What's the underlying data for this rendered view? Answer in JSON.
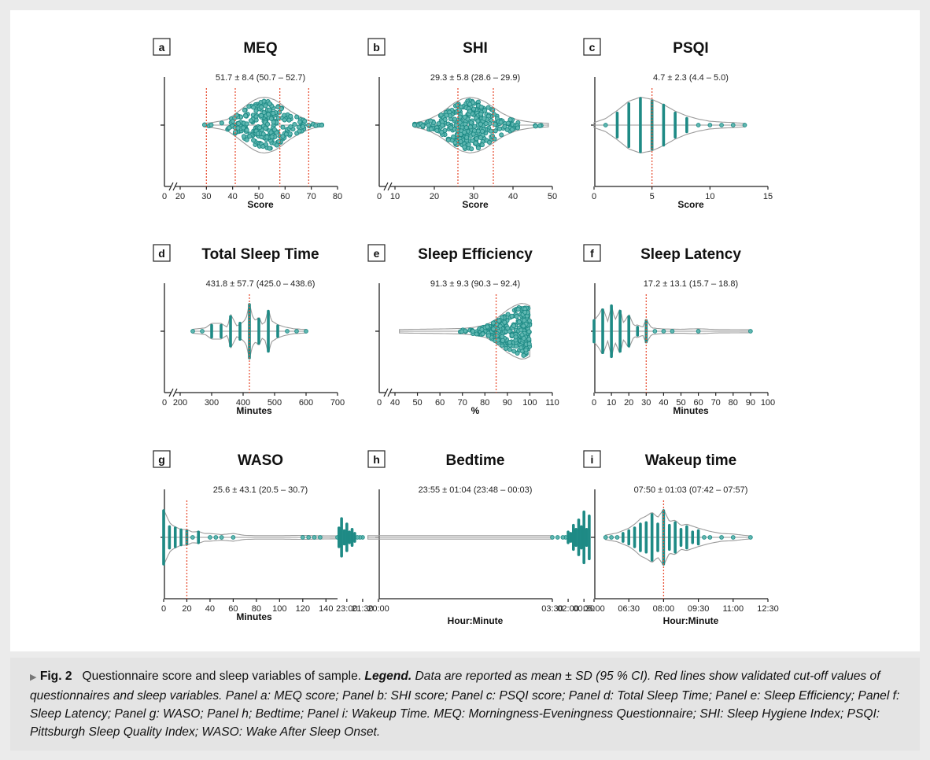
{
  "colors": {
    "teal": "#1e8a85",
    "dot_fill": "#5fb7b1",
    "red": "#e8553a",
    "outline": "#9a9a9a"
  },
  "caption": {
    "marker": "▶",
    "label": "Fig. 2",
    "text": "Questionnaire score and sleep variables of sample.",
    "legend_label": "Legend.",
    "legend_text": "Data are reported as mean ± SD (95 % CI). Red lines show validated cut-off values of questionnaires and sleep variables. Panel a: MEQ score; Panel b: SHI score; Panel c: PSQI score; Panel d: Total Sleep Time; Panel e: Sleep Efficiency; Panel f: Sleep Latency; Panel g: WASO; Panel h; Bedtime; Panel i: Wakeup Time. MEQ: Morningness-Eveningness Questionnaire; SHI: Sleep Hygiene Index; PSQI: Pittsburgh Sleep Quality Index; WASO: Wake After Sleep Onset."
  },
  "chart_data": [
    {
      "type": "violin",
      "panel": "a",
      "title": "MEQ",
      "stats": "51.7 ± 8.4 (50.7 – 52.7)",
      "xlabel": "Score",
      "xlim": [
        20,
        80
      ],
      "axis_break": true,
      "origin_label": "0",
      "ticks": [
        20,
        30,
        40,
        50,
        60,
        70,
        80
      ],
      "tick_labels": [
        "20",
        "30",
        "40",
        "50",
        "60",
        "70",
        "80"
      ],
      "cutoffs": [
        30,
        41,
        58,
        69
      ],
      "density_x": [
        29,
        32,
        35,
        38,
        40,
        42,
        44,
        46,
        48,
        50,
        52,
        54,
        56,
        58,
        60,
        62,
        64,
        66,
        68,
        71,
        74
      ],
      "density_w": [
        0.02,
        0.05,
        0.1,
        0.17,
        0.3,
        0.45,
        0.6,
        0.75,
        0.88,
        0.97,
        1.0,
        0.97,
        0.9,
        0.78,
        0.62,
        0.48,
        0.36,
        0.26,
        0.16,
        0.06,
        0.01
      ],
      "dots": "beeswarm",
      "n": 260,
      "mean": 51.7,
      "sd": 8.4
    },
    {
      "type": "violin",
      "panel": "b",
      "title": "SHI",
      "stats": "29.3 ± 5.8 (28.6 – 29.9)",
      "xlabel": "Score",
      "xlim": [
        10,
        50
      ],
      "axis_break": true,
      "origin_label": "0",
      "ticks": [
        10,
        20,
        30,
        40,
        50
      ],
      "tick_labels": [
        "10",
        "20",
        "30",
        "40",
        "50"
      ],
      "cutoffs": [
        26,
        35
      ],
      "density_x": [
        15,
        17,
        19,
        21,
        23,
        25,
        27,
        29,
        31,
        33,
        35,
        37,
        39,
        41,
        43,
        45,
        47,
        49
      ],
      "density_w": [
        0.04,
        0.1,
        0.2,
        0.35,
        0.55,
        0.78,
        0.93,
        1.0,
        0.95,
        0.82,
        0.62,
        0.42,
        0.27,
        0.16,
        0.1,
        0.06,
        0.04,
        0.02
      ],
      "dots": "beeswarm",
      "n": 330,
      "mean": 29.3,
      "sd": 5.8
    },
    {
      "type": "violin",
      "panel": "c",
      "title": "PSQI",
      "stats": "4.7 ± 2.3 (4.4 – 5.0)",
      "xlabel": "Score",
      "xlim": [
        0,
        15
      ],
      "axis_break": false,
      "ticks": [
        0,
        5,
        10,
        15
      ],
      "tick_labels": [
        "0",
        "5",
        "10",
        "15"
      ],
      "cutoffs": [
        5
      ],
      "density_x": [
        0,
        1,
        2,
        3,
        4,
        5,
        6,
        7,
        8,
        9,
        10,
        11,
        12,
        13
      ],
      "density_w": [
        0.05,
        0.2,
        0.5,
        0.85,
        1.0,
        0.92,
        0.72,
        0.48,
        0.3,
        0.18,
        0.1,
        0.07,
        0.05,
        0.02
      ],
      "dots": "stripes",
      "stripe_x": [
        1,
        2,
        3,
        4,
        5,
        6,
        7,
        8,
        9,
        10,
        11,
        12,
        13
      ],
      "stripe_w": [
        0.1,
        0.45,
        0.8,
        1.0,
        0.9,
        0.75,
        0.45,
        0.25,
        0.12,
        0.07,
        0.05,
        0.04,
        0.02
      ]
    },
    {
      "type": "violin",
      "panel": "d",
      "title": "Total Sleep Time",
      "stats": "431.8 ± 57.7 (425.0 – 438.6)",
      "xlabel": "Minutes",
      "xlim": [
        200,
        700
      ],
      "axis_break": true,
      "origin_label": "0",
      "ticks": [
        200,
        300,
        400,
        500,
        600,
        700
      ],
      "tick_labels": [
        "200",
        "300",
        "400",
        "500",
        "600",
        "700"
      ],
      "cutoffs": [
        420
      ],
      "density_x": [
        240,
        280,
        300,
        330,
        350,
        360,
        380,
        400,
        410,
        420,
        430,
        440,
        450,
        460,
        470,
        480,
        490,
        510,
        530,
        560,
        600
      ],
      "density_w": [
        0.03,
        0.08,
        0.25,
        0.25,
        0.1,
        0.6,
        0.15,
        0.3,
        0.45,
        1.0,
        0.5,
        0.35,
        0.5,
        0.22,
        0.3,
        0.8,
        0.35,
        0.2,
        0.12,
        0.05,
        0.02
      ],
      "dots": "stripes",
      "stripe_x": [
        240,
        270,
        300,
        330,
        360,
        390,
        420,
        450,
        480,
        510,
        540,
        570,
        600
      ],
      "stripe_w": [
        0.05,
        0.1,
        0.22,
        0.22,
        0.55,
        0.3,
        1.0,
        0.45,
        0.75,
        0.2,
        0.12,
        0.05,
        0.03
      ]
    },
    {
      "type": "violin",
      "panel": "e",
      "title": "Sleep Efficiency",
      "stats": "91.3 ± 9.3 (90.3 – 92.4)",
      "xlabel": "%",
      "xlim": [
        40,
        110
      ],
      "axis_break": true,
      "origin_label": "0",
      "ticks": [
        40,
        50,
        60,
        70,
        80,
        90,
        100,
        110
      ],
      "tick_labels": [
        "40",
        "50",
        "60",
        "70",
        "80",
        "90",
        "100",
        "110"
      ],
      "cutoffs": [
        85
      ],
      "density_x": [
        42,
        50,
        60,
        70,
        75,
        80,
        84,
        87,
        90,
        93,
        96,
        98,
        100
      ],
      "density_w": [
        0.02,
        0.03,
        0.04,
        0.06,
        0.1,
        0.18,
        0.35,
        0.55,
        0.75,
        0.9,
        1.0,
        0.98,
        0.9
      ],
      "dots": "beeswarm",
      "n": 300,
      "mean": 91.3,
      "sd": 9.3,
      "clip_max": 100
    },
    {
      "type": "violin",
      "panel": "f",
      "title": "Sleep Latency",
      "stats": "17.2 ± 13.1 (15.7 – 18.8)",
      "xlabel": "Minutes",
      "xlim": [
        0,
        100
      ],
      "axis_break": false,
      "ticks": [
        0,
        10,
        20,
        30,
        40,
        50,
        60,
        70,
        80,
        90,
        100
      ],
      "tick_labels": [
        "0",
        "10",
        "20",
        "30",
        "40",
        "50",
        "60",
        "70",
        "80",
        "90",
        "100"
      ],
      "cutoffs": [
        30
      ],
      "density_x": [
        0,
        3,
        5,
        8,
        10,
        12,
        15,
        17,
        20,
        23,
        25,
        28,
        30,
        33,
        40,
        50,
        60,
        70,
        90
      ],
      "density_w": [
        0.35,
        0.6,
        0.85,
        0.3,
        0.95,
        0.35,
        0.8,
        0.25,
        0.6,
        0.15,
        0.2,
        0.1,
        0.4,
        0.08,
        0.04,
        0.03,
        0.05,
        0.02,
        0.01
      ],
      "dots": "stripes",
      "stripe_x": [
        0,
        5,
        10,
        15,
        20,
        25,
        30,
        35,
        40,
        45,
        60,
        90
      ],
      "stripe_w": [
        0.4,
        0.8,
        0.95,
        0.75,
        0.55,
        0.15,
        0.4,
        0.06,
        0.05,
        0.04,
        0.06,
        0.02
      ]
    },
    {
      "type": "violin",
      "panel": "g",
      "title": "WASO",
      "stats": "25.6 ± 43.1 (20.5 – 30.7)",
      "xlabel": "Minutes",
      "xlim": [
        0,
        150
      ],
      "axis_break": false,
      "ticks": [
        0,
        20,
        40,
        60,
        80,
        100,
        120,
        140
      ],
      "tick_labels": [
        "0",
        "20",
        "40",
        "60",
        "80",
        "100",
        "120",
        "140"
      ],
      "cutoffs": [
        20
      ],
      "density_x": [
        0,
        3,
        6,
        10,
        15,
        20,
        25,
        30,
        35,
        40,
        50,
        60,
        70,
        80,
        100,
        120,
        130,
        150
      ],
      "density_w": [
        1.0,
        0.7,
        0.45,
        0.35,
        0.25,
        0.25,
        0.15,
        0.18,
        0.1,
        0.1,
        0.06,
        0.1,
        0.03,
        0.02,
        0.02,
        0.03,
        0.02,
        0.01
      ],
      "dots": "stripes",
      "stripe_x": [
        0,
        5,
        10,
        15,
        20,
        25,
        30,
        40,
        45,
        50,
        60,
        120,
        125,
        130,
        135,
        150
      ],
      "stripe_w": [
        1.0,
        0.4,
        0.35,
        0.28,
        0.25,
        0.12,
        0.2,
        0.12,
        0.1,
        0.08,
        0.1,
        0.03,
        0.02,
        0.03,
        0.02,
        0.01
      ]
    },
    {
      "type": "violin",
      "panel": "h",
      "title": "Bedtime",
      "stats": "23:55 ± 01:04 (23:48 – 00:03)",
      "xlabel": "Hour:Minute",
      "xlim": [
        "20:00",
        "03:30"
      ],
      "axis_break": false,
      "ticks": [
        "20:00",
        "21:30",
        "23:00",
        "00:30",
        "02:00",
        "03:30"
      ],
      "tick_labels": [
        "20:00",
        "21:30",
        "23:00",
        "00:30",
        "02:00",
        "03:30"
      ],
      "cutoffs": [],
      "density_x": [
        "21:00",
        "21:30",
        "22:00",
        "22:30",
        "22:45",
        "23:00",
        "23:15",
        "23:30",
        "23:45",
        "00:00",
        "00:15",
        "00:30",
        "00:45",
        "01:00",
        "01:15",
        "01:30",
        "02:00",
        "02:30",
        "03:00",
        "03:30"
      ],
      "density_w": [
        0.02,
        0.05,
        0.12,
        0.3,
        0.28,
        0.55,
        0.35,
        0.75,
        0.45,
        0.85,
        0.45,
        1.0,
        0.5,
        0.7,
        0.35,
        0.45,
        0.18,
        0.08,
        0.03,
        0.01
      ],
      "dots": "stripes",
      "stripe_x": [
        "21:30",
        "21:45",
        "22:00",
        "22:15",
        "22:30",
        "22:45",
        "23:00",
        "23:15",
        "23:30",
        "23:45",
        "00:00",
        "00:15",
        "00:30",
        "00:45",
        "01:00",
        "01:15",
        "01:30",
        "01:45",
        "02:00",
        "02:15",
        "02:30",
        "03:00",
        "03:30"
      ],
      "stripe_w": [
        0.05,
        0.06,
        0.1,
        0.15,
        0.3,
        0.2,
        0.5,
        0.25,
        0.7,
        0.35,
        0.8,
        0.3,
        0.95,
        0.4,
        0.65,
        0.3,
        0.45,
        0.15,
        0.2,
        0.1,
        0.08,
        0.04,
        0.02
      ]
    },
    {
      "type": "violin",
      "panel": "i",
      "title": "Wakeup time",
      "stats": "07:50 ± 01:03 (07:42 – 07:57)",
      "xlabel": "Hour:Minute",
      "xlim": [
        "05:00",
        "12:30"
      ],
      "axis_break": false,
      "ticks": [
        "05:00",
        "06:30",
        "08:00",
        "09:30",
        "11:00",
        "12:30"
      ],
      "tick_labels": [
        "05:00",
        "06:30",
        "08:00",
        "09:30",
        "11:00",
        "12:30"
      ],
      "cutoffs": [
        "08:00"
      ],
      "density_x": [
        "05:30",
        "06:00",
        "06:30",
        "06:45",
        "07:00",
        "07:15",
        "07:30",
        "07:45",
        "08:00",
        "08:15",
        "08:30",
        "08:45",
        "09:00",
        "09:30",
        "10:00",
        "10:30",
        "11:00",
        "11:30",
        "11:45"
      ],
      "density_w": [
        0.04,
        0.12,
        0.3,
        0.45,
        0.65,
        0.75,
        0.9,
        0.7,
        1.0,
        0.55,
        0.6,
        0.4,
        0.45,
        0.3,
        0.18,
        0.1,
        0.08,
        0.03,
        0.01
      ],
      "dots": "stripes",
      "stripe_x": [
        "05:30",
        "05:45",
        "06:00",
        "06:15",
        "06:30",
        "06:45",
        "07:00",
        "07:15",
        "07:30",
        "07:45",
        "08:00",
        "08:15",
        "08:30",
        "08:45",
        "09:00",
        "09:15",
        "09:30",
        "09:45",
        "10:00",
        "10:30",
        "11:00",
        "11:45"
      ],
      "stripe_w": [
        0.03,
        0.05,
        0.1,
        0.15,
        0.25,
        0.35,
        0.5,
        0.55,
        0.85,
        0.5,
        1.0,
        0.45,
        0.55,
        0.3,
        0.4,
        0.2,
        0.25,
        0.12,
        0.12,
        0.08,
        0.06,
        0.02
      ]
    }
  ]
}
